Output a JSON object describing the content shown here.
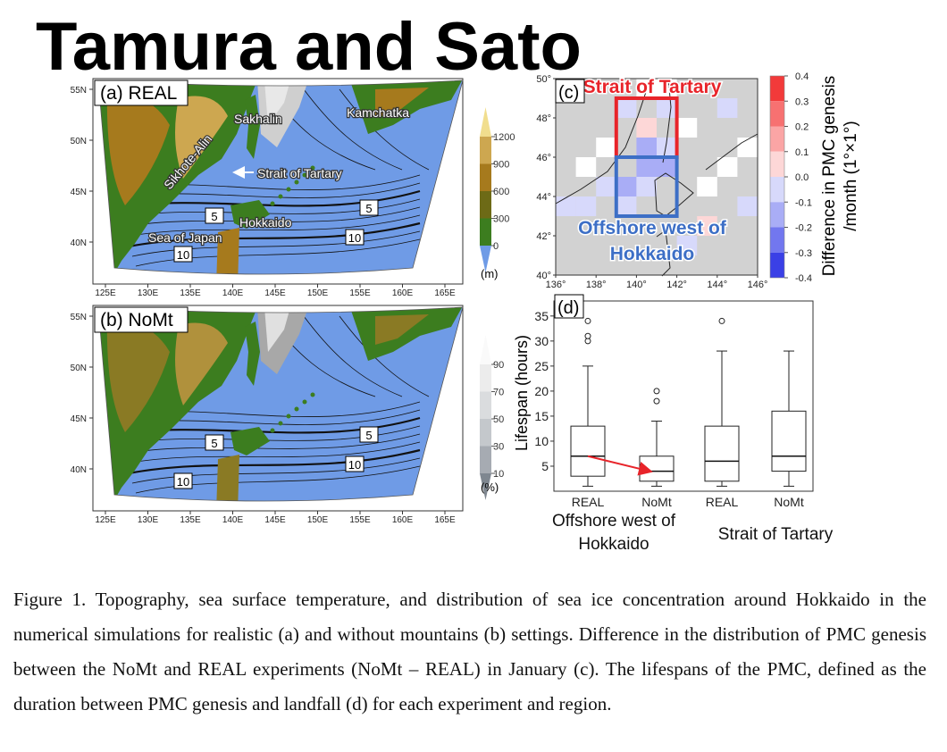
{
  "header": {
    "title": "Tamura and Sato"
  },
  "map_axes": {
    "lon_ticks": [
      {
        "value": 125,
        "label": "125E"
      },
      {
        "value": 130,
        "label": "130E"
      },
      {
        "value": 135,
        "label": "135E"
      },
      {
        "value": 140,
        "label": "140E"
      },
      {
        "value": 145,
        "label": "145E"
      },
      {
        "value": 150,
        "label": "150E"
      },
      {
        "value": 155,
        "label": "155E"
      },
      {
        "value": 160,
        "label": "160E"
      },
      {
        "value": 165,
        "label": "165E"
      }
    ],
    "lat_ticks": [
      {
        "value": 55,
        "label": "55N"
      },
      {
        "value": 50,
        "label": "50N"
      },
      {
        "value": 45,
        "label": "45N"
      },
      {
        "value": 40,
        "label": "40N"
      }
    ]
  },
  "panel_a": {
    "label": "(a) REAL",
    "places": [
      "Sakhalin",
      "Kamchatka",
      "Sikhote-Alin",
      "Strait of Tartary",
      "Hokkaido",
      "Sea of Japan"
    ],
    "contour_labels": [
      "5",
      "5",
      "10",
      "10"
    ],
    "colorbar": {
      "ticks": [
        0,
        300,
        600,
        900,
        1200
      ],
      "unit": "(m)"
    }
  },
  "panel_b": {
    "label": "(b) NoMt",
    "contour_labels": [
      "5",
      "5",
      "10",
      "10"
    ],
    "colorbar": {
      "ticks": [
        10,
        30,
        50,
        70,
        90
      ],
      "unit": "(%)"
    }
  },
  "panel_c": {
    "label": "(c)",
    "regions": [
      {
        "name": [
          "Strait of Tartary"
        ],
        "color": "#e8242a",
        "lon": [
          139,
          142
        ],
        "lat": [
          46,
          49
        ]
      },
      {
        "name": [
          "Offshore west of",
          "Hokkaido"
        ],
        "color": "#3d6fc6",
        "lon": [
          139,
          142
        ],
        "lat": [
          43,
          46
        ]
      }
    ],
    "lon_ticks": [
      {
        "value": 136,
        "label": "136°"
      },
      {
        "value": 138,
        "label": "138°"
      },
      {
        "value": 140,
        "label": "140°"
      },
      {
        "value": 142,
        "label": "142°"
      },
      {
        "value": 144,
        "label": "144°"
      },
      {
        "value": 146,
        "label": "146°"
      }
    ],
    "lat_ticks": [
      {
        "value": 50,
        "label": "50°"
      },
      {
        "value": 48,
        "label": "48°"
      },
      {
        "value": 46,
        "label": "46°"
      },
      {
        "value": 44,
        "label": "44°"
      },
      {
        "value": 42,
        "label": "42°"
      },
      {
        "value": 40,
        "label": "40°"
      }
    ],
    "cells": [
      {
        "lon": 140,
        "lat": 45,
        "value": -0.15
      },
      {
        "lon": 141,
        "lat": 45,
        "value": -0.1
      },
      {
        "lon": 140,
        "lat": 46,
        "value": -0.1
      },
      {
        "lon": 139,
        "lat": 43,
        "value": -0.05
      },
      {
        "lon": 138,
        "lat": 44,
        "value": -0.05
      },
      {
        "lon": 136,
        "lat": 43,
        "value": -0.05
      },
      {
        "lon": 137,
        "lat": 43,
        "value": -0.05
      },
      {
        "lon": 139,
        "lat": 44,
        "value": -0.1
      },
      {
        "lon": 140,
        "lat": 44,
        "value": -0.05
      },
      {
        "lon": 141,
        "lat": 46,
        "value": -0.05
      },
      {
        "lon": 139,
        "lat": 48,
        "value": -0.05
      },
      {
        "lon": 141,
        "lat": 48,
        "value": -0.05
      },
      {
        "lon": 144,
        "lat": 48,
        "value": -0.05
      },
      {
        "lon": 145,
        "lat": 43,
        "value": -0.05
      },
      {
        "lon": 142,
        "lat": 41,
        "value": -0.05
      },
      {
        "lon": 140,
        "lat": 47,
        "value": 0.05
      },
      {
        "lon": 143,
        "lat": 42,
        "value": 0.05
      },
      {
        "lon": 137,
        "lat": 45,
        "value": 0
      },
      {
        "lon": 138,
        "lat": 46,
        "value": 0
      },
      {
        "lon": 142,
        "lat": 47,
        "value": 0
      },
      {
        "lon": 143,
        "lat": 44,
        "value": 0
      },
      {
        "lon": 140,
        "lat": 49,
        "value": 0
      },
      {
        "lon": 141,
        "lat": 49,
        "value": 0
      },
      {
        "lon": 144,
        "lat": 45,
        "value": 0
      },
      {
        "lon": 145,
        "lat": 46,
        "value": 0
      }
    ],
    "colorbar": {
      "ticks": [
        0.4,
        0.3,
        0.2,
        0.1,
        {
          "value": 0,
          "label": "0.0"
        },
        -0.1,
        -0.2,
        -0.3,
        -0.4
      ],
      "colors": [
        "#f23a3a",
        "#f77171",
        "#fba5a5",
        "#fdd7d7",
        "#d7d9fb",
        "#a9adf6",
        "#7277ef",
        "#3a40e6"
      ],
      "label": [
        "Difference in PMC genesis",
        "/month (1°×1°)"
      ]
    }
  },
  "chart_data": {
    "type": "box",
    "label": "(d)",
    "ylabel": "Lifespan (hours)",
    "categories": [
      "REAL",
      "NoMt",
      "REAL",
      "NoMt"
    ],
    "groups": [
      [
        "Offshore west of",
        "Hokkaido"
      ],
      [
        "Strait of Tartary"
      ]
    ],
    "boxes": [
      {
        "min": 1,
        "q1": 3,
        "median": 7,
        "q3": 13,
        "max": 25,
        "outliers": [
          30,
          31,
          34
        ]
      },
      {
        "min": 1,
        "q1": 2,
        "median": 4,
        "q3": 7,
        "max": 14,
        "outliers": [
          18,
          20
        ]
      },
      {
        "min": 1,
        "q1": 2,
        "median": 6,
        "q3": 13,
        "max": 28,
        "outliers": [
          34
        ]
      },
      {
        "min": 1,
        "q1": 4,
        "median": 7,
        "q3": 16,
        "max": 28,
        "outliers": []
      }
    ],
    "ylim": [
      0,
      38
    ],
    "yticks": [
      5,
      10,
      15,
      20,
      25,
      30,
      35
    ],
    "arrow_color": "#e8242a"
  },
  "caption": "Figure 1. Topography, sea surface temperature, and distribution of sea ice concentration around Hokkaido in the numerical simulations for realistic (a) and without mountains (b) settings. Difference in the distribution of PMC genesis between the NoMt and REAL experiments (NoMt – REAL) in January (c). The lifespans of the PMC, defined as the duration between PMC genesis and landfall (d) for each experiment and region."
}
